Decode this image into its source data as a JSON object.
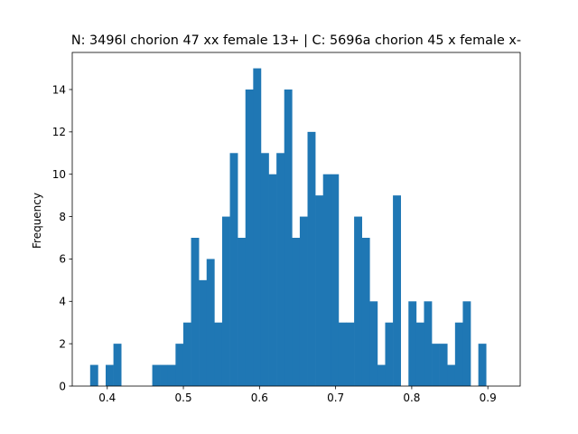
{
  "chart_data": {
    "type": "bar",
    "title": "N: 3496l chorion 47 xx female 13+ | C: 5696a chorion 45 x female x-",
    "xlabel": "",
    "ylabel": "Frequency",
    "xlim": [
      0.354,
      0.9425
    ],
    "ylim": [
      0,
      15.75
    ],
    "xticks": [
      "0.4",
      "0.5",
      "0.6",
      "0.7",
      "0.8",
      "0.9"
    ],
    "yticks": [
      "0",
      "2",
      "4",
      "6",
      "8",
      "10",
      "12",
      "14"
    ],
    "bin_start": 0.3775,
    "bin_width": 0.0102,
    "values": [
      1,
      0,
      1,
      2,
      0,
      0,
      0,
      0,
      1,
      1,
      1,
      2,
      3,
      7,
      5,
      6,
      3,
      8,
      11,
      7,
      14,
      15,
      11,
      10,
      11,
      14,
      7,
      8,
      12,
      9,
      10,
      10,
      3,
      3,
      8,
      7,
      4,
      1,
      3,
      9,
      0,
      4,
      3,
      4,
      2,
      2,
      1,
      3,
      4,
      0,
      2
    ],
    "bar_color": "#1f77b4",
    "grid": false,
    "legend": "none"
  }
}
